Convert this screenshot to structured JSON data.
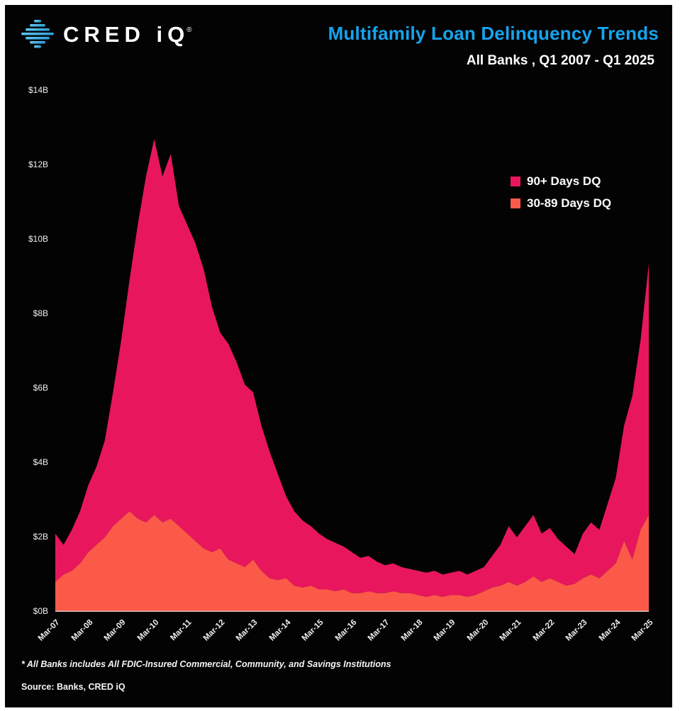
{
  "header": {
    "logo_text": "CRED iQ",
    "logo_registered": "®",
    "title": "Multifamily Loan Delinquency Trends",
    "subtitle": "All Banks , Q1 2007 - Q1 2025"
  },
  "legend": [
    {
      "label": "90+ Days DQ",
      "color": "#e8175d"
    },
    {
      "label": "30-89 Days DQ",
      "color": "#fb5a49"
    }
  ],
  "footnote": "* All Banks includes All FDIC-Insured Commercial, Community, and Savings Institutions",
  "source": "Source: Banks, CRED iQ",
  "chart_data": {
    "type": "area",
    "stacked": true,
    "title": "Multifamily Loan Delinquency Trends",
    "subtitle": "All Banks , Q1 2007 - Q1 2025",
    "background": "#030303",
    "grid": false,
    "legend_position": "top-right-inside",
    "ylim": [
      0,
      14
    ],
    "yticks": [
      "$0B",
      "$2B",
      "$4B",
      "$6B",
      "$8B",
      "$10B",
      "$12B",
      "$14B"
    ],
    "ytick_unit": "billions USD",
    "x": [
      "Mar-07",
      "Jun-07",
      "Sep-07",
      "Dec-07",
      "Mar-08",
      "Jun-08",
      "Sep-08",
      "Dec-08",
      "Mar-09",
      "Jun-09",
      "Sep-09",
      "Dec-09",
      "Mar-10",
      "Jun-10",
      "Sep-10",
      "Dec-10",
      "Mar-11",
      "Jun-11",
      "Sep-11",
      "Dec-11",
      "Mar-12",
      "Jun-12",
      "Sep-12",
      "Dec-12",
      "Mar-13",
      "Jun-13",
      "Sep-13",
      "Dec-13",
      "Mar-14",
      "Jun-14",
      "Sep-14",
      "Dec-14",
      "Mar-15",
      "Jun-15",
      "Sep-15",
      "Dec-15",
      "Mar-16",
      "Jun-16",
      "Sep-16",
      "Dec-16",
      "Mar-17",
      "Jun-17",
      "Sep-17",
      "Dec-17",
      "Mar-18",
      "Jun-18",
      "Sep-18",
      "Dec-18",
      "Mar-19",
      "Jun-19",
      "Sep-19",
      "Dec-19",
      "Mar-20",
      "Jun-20",
      "Sep-20",
      "Dec-20",
      "Mar-21",
      "Jun-21",
      "Sep-21",
      "Dec-21",
      "Mar-22",
      "Jun-22",
      "Sep-22",
      "Dec-22",
      "Mar-23",
      "Jun-23",
      "Sep-23",
      "Dec-23",
      "Mar-24",
      "Jun-24",
      "Sep-24",
      "Dec-24",
      "Mar-25"
    ],
    "x_tick_labels": [
      "Mar-07",
      "Mar-08",
      "Mar-09",
      "Mar-10",
      "Mar-11",
      "Mar-12",
      "Mar-13",
      "Mar-14",
      "Mar-15",
      "Mar-16",
      "Mar-17",
      "Mar-18",
      "Mar-19",
      "Mar-20",
      "Mar-21",
      "Mar-22",
      "Mar-23",
      "Mar-24",
      "Mar-25"
    ],
    "series": [
      {
        "name": "30-89 Days DQ",
        "color": "#fb5a49",
        "values": [
          0.8,
          1.0,
          1.1,
          1.3,
          1.6,
          1.8,
          2.0,
          2.3,
          2.5,
          2.7,
          2.5,
          2.4,
          2.6,
          2.4,
          2.5,
          2.3,
          2.1,
          1.9,
          1.7,
          1.6,
          1.7,
          1.4,
          1.3,
          1.2,
          1.4,
          1.1,
          0.9,
          0.85,
          0.9,
          0.7,
          0.65,
          0.7,
          0.6,
          0.6,
          0.55,
          0.6,
          0.5,
          0.5,
          0.55,
          0.5,
          0.5,
          0.55,
          0.5,
          0.5,
          0.45,
          0.4,
          0.45,
          0.4,
          0.45,
          0.45,
          0.4,
          0.45,
          0.55,
          0.65,
          0.7,
          0.8,
          0.7,
          0.8,
          0.95,
          0.8,
          0.9,
          0.8,
          0.7,
          0.75,
          0.9,
          1.0,
          0.9,
          1.1,
          1.3,
          1.9,
          1.4,
          2.2,
          2.6
        ]
      },
      {
        "name": "90+ Days DQ",
        "color": "#e8175d",
        "values": [
          1.3,
          0.8,
          1.1,
          1.4,
          1.8,
          2.1,
          2.6,
          3.6,
          4.8,
          6.2,
          7.9,
          9.3,
          10.1,
          9.3,
          9.8,
          8.6,
          8.3,
          8.0,
          7.5,
          6.6,
          5.8,
          5.8,
          5.4,
          4.9,
          4.5,
          3.9,
          3.4,
          2.85,
          2.2,
          2.0,
          1.8,
          1.6,
          1.5,
          1.35,
          1.3,
          1.15,
          1.1,
          0.95,
          0.95,
          0.85,
          0.75,
          0.75,
          0.7,
          0.65,
          0.65,
          0.65,
          0.65,
          0.6,
          0.6,
          0.65,
          0.6,
          0.65,
          0.65,
          0.85,
          1.1,
          1.5,
          1.3,
          1.5,
          1.65,
          1.3,
          1.35,
          1.15,
          1.05,
          0.8,
          1.2,
          1.4,
          1.3,
          1.8,
          2.3,
          3.1,
          4.4,
          5.1,
          6.75
        ]
      }
    ]
  }
}
